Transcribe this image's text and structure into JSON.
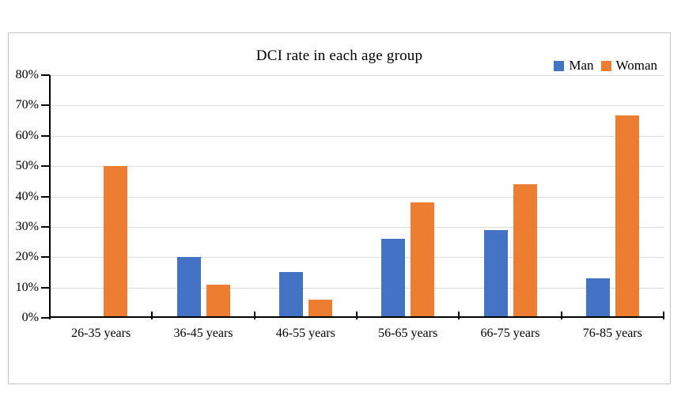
{
  "chart_data": {
    "type": "bar",
    "title": "DCI rate in each age group",
    "categories": [
      "26-35 years",
      "36-45 years",
      "46-55 years",
      "56-65 years",
      "66-75 years",
      "76-85 years"
    ],
    "series": [
      {
        "name": "Man",
        "color": "#4472C4",
        "values": [
          0,
          20,
          15,
          26,
          29,
          13
        ]
      },
      {
        "name": "Woman",
        "color": "#ED7D31",
        "values": [
          50,
          11,
          6,
          38,
          44,
          66.7
        ]
      }
    ],
    "xlabel": "",
    "ylabel": "",
    "ylim": [
      0,
      80
    ],
    "y_tick_step": 10,
    "y_tick_labels": [
      "0%",
      "10%",
      "20%",
      "30%",
      "40%",
      "50%",
      "60%",
      "70%",
      "80%"
    ],
    "grid": true,
    "legend_position": "top-right",
    "colors": {
      "gridline": "#DCDCDC",
      "axis": "#000000",
      "figure_border": "#C7C7C7",
      "background": "#FFFFFF",
      "text": "#000000"
    }
  }
}
